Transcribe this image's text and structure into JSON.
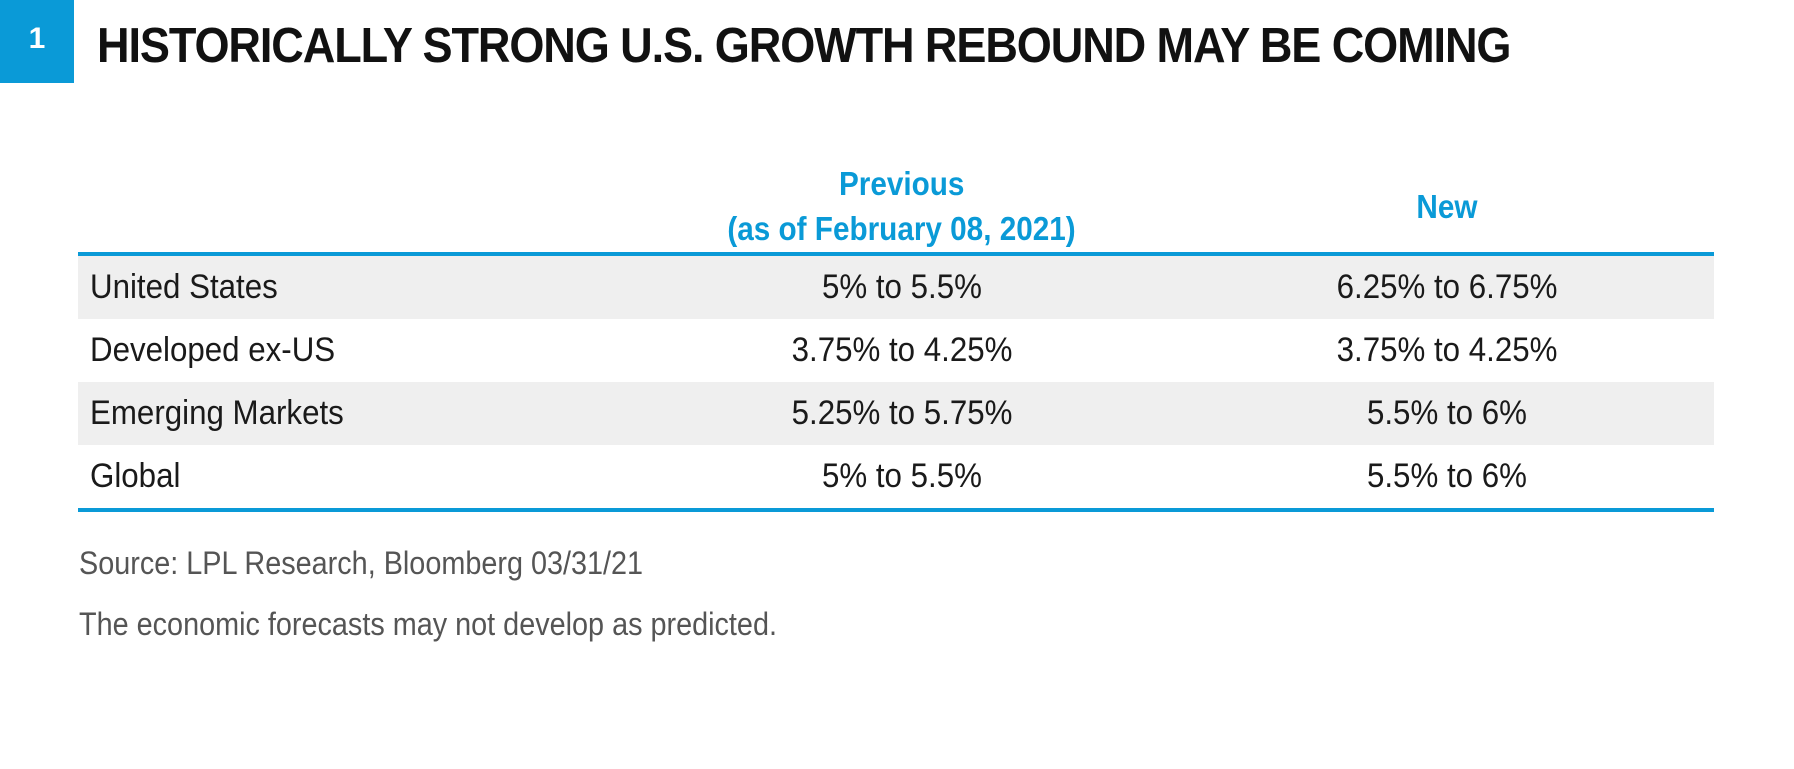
{
  "header": {
    "figure_number": "1",
    "title": "HISTORICALLY STRONG U.S. GROWTH REBOUND MAY BE COMING"
  },
  "chart_data": {
    "type": "table",
    "columns": {
      "region": "",
      "previous_line1": "Previous",
      "previous_line2": "(as of February 08, 2021)",
      "new": "New"
    },
    "rows": [
      {
        "region": "United States",
        "previous": "5% to 5.5%",
        "new": "6.25% to 6.75%"
      },
      {
        "region": "Developed ex-US",
        "previous": "3.75% to 4.25%",
        "new": "3.75% to 4.25%"
      },
      {
        "region": "Emerging Markets",
        "previous": "5.25% to 5.75%",
        "new": "5.5% to 6%"
      },
      {
        "region": "Global",
        "previous": "5% to 5.5%",
        "new": "5.5% to 6%"
      }
    ],
    "row_shading": "alternating",
    "accent_color": "#0a9ad7",
    "shade_color": "#efefef"
  },
  "footer": {
    "source": "Source: LPL Research, Bloomberg  03/31/21",
    "disclaimer": "The economic forecasts may not develop as predicted."
  }
}
